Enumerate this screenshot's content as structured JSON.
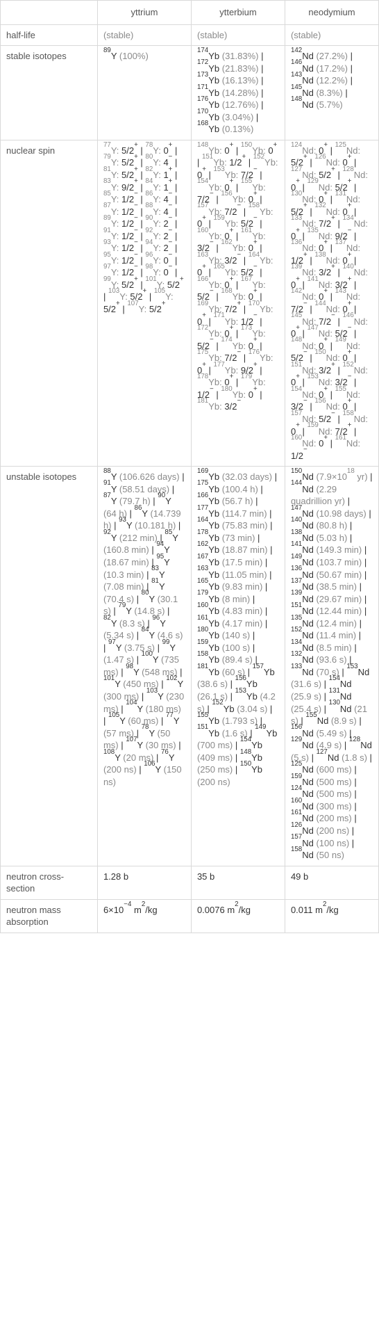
{
  "headers": [
    "",
    "yttrium",
    "ytterbium",
    "neodymium"
  ],
  "rows": [
    {
      "label": "half-life",
      "cells": [
        {
          "html": "(stable)",
          "class": "gray"
        },
        {
          "html": "(stable)",
          "class": "gray"
        },
        {
          "html": "(stable)",
          "class": "gray"
        }
      ]
    },
    {
      "label": "stable isotopes",
      "cells": [
        {
          "html": "<sup>89</sup>Y <span class=\"gray\">(100%)</span>"
        },
        {
          "html": "<sup>174</sup>Yb <span class=\"gray\">(31.83%)</span> | <sup>172</sup>Yb <span class=\"gray\">(21.83%)</span> | <sup>173</sup>Yb <span class=\"gray\">(16.13%)</span> | <sup>171</sup>Yb <span class=\"gray\">(14.28%)</span> | <sup>176</sup>Yb <span class=\"gray\">(12.76%)</span> | <sup>170</sup>Yb <span class=\"gray\">(3.04%)</span> | <sup>168</sup>Yb <span class=\"gray\">(0.13%)</span>"
        },
        {
          "html": "<sup>142</sup>Nd <span class=\"gray\">(27.2%)</span> | <sup>146</sup>Nd <span class=\"gray\">(17.2%)</span> | <sup>143</sup>Nd <span class=\"gray\">(12.2%)</span> | <sup>145</sup>Nd <span class=\"gray\">(8.3%)</span> | <sup>148</sup>Nd <span class=\"gray\">(5.7%)</span>"
        }
      ]
    },
    {
      "label": "nuclear spin",
      "cells": [
        {
          "html": "<span class=\"gray\"><sup>77</sup>Y:</span> 5/2<sup>+</sup> | <span class=\"gray\"><sup>78</sup>Y:</span> 0<sup>+</sup> | <span class=\"gray\"><sup>79</sup>Y:</span> 5/2<sup>+</sup> | <span class=\"gray\"><sup>80</sup>Y:</span> 4<sup>−</sup> | <span class=\"gray\"><sup>81</sup>Y:</span> 5/2<sup>+</sup> | <span class=\"gray\"><sup>82</sup>Y:</span> 1<sup>+</sup> | <span class=\"gray\"><sup>83</sup>Y:</span> 9/2<sup>+</sup> | <span class=\"gray\"><sup>84</sup>Y:</span> 1<sup>+</sup> | <span class=\"gray\"><sup>85</sup>Y:</span> 1/2<sup>−</sup> | <span class=\"gray\"><sup>86</sup>Y:</span> 4<sup>−</sup> | <span class=\"gray\"><sup>87</sup>Y:</span> 1/2<sup>−</sup> | <span class=\"gray\"><sup>88</sup>Y:</span> 4<sup>−</sup> | <span class=\"gray\"><sup>89</sup>Y:</span> 1/2<sup>−</sup> | <span class=\"gray\"><sup>90</sup>Y:</span> 2<sup>−</sup> | <span class=\"gray\"><sup>91</sup>Y:</span> 1/2<sup>−</sup> | <span class=\"gray\"><sup>92</sup>Y:</span> 2<sup>−</sup> | <span class=\"gray\"><sup>93</sup>Y:</span> 1/2<sup>−</sup> | <span class=\"gray\"><sup>94</sup>Y:</span> 2<sup>−</sup> | <span class=\"gray\"><sup>95</sup>Y:</span> 1/2<sup>−</sup> | <span class=\"gray\"><sup>96</sup>Y:</span> 0<sup>−</sup> | <span class=\"gray\"><sup>97</sup>Y:</span> 1/2<sup>−</sup> | <span class=\"gray\"><sup>98</sup>Y:</span> 0<sup>−</sup> | <span class=\"gray\"><sup>99</sup>Y:</span> 5/2<sup>+</sup> | <span class=\"gray\"><sup>101</sup>Y:</span> 5/2<sup>+</sup> | <span class=\"gray\"><sup>103</sup>Y:</span> 5/2<sup>+</sup> | <span class=\"gray\"><sup>105</sup>Y:</span> 5/2<sup>+</sup> | <span class=\"gray\"><sup>107</sup>Y:</span> 5/2<sup>+</sup>"
        },
        {
          "html": "<span class=\"gray\"><sup>148</sup>Yb:</span> 0<sup>+</sup> | <span class=\"gray\"><sup>150</sup>Yb:</span> 0<sup>+</sup> | <span class=\"gray\"><sup>151</sup>Yb:</span> 1/2<sup>+</sup> | <span class=\"gray\"><sup>152</sup>Yb:</span> 0<sup>+</sup> | <span class=\"gray\"><sup>153</sup>Yb:</span> 7/2<sup>−</sup> | <span class=\"gray\"><sup>154</sup>Yb:</span> 0<sup>+</sup> | <span class=\"gray\"><sup>155</sup>Yb:</span> 7/2<sup>−</sup> | <span class=\"gray\"><sup>156</sup>Yb:</span> 0<sup>+</sup> | <span class=\"gray\"><sup>157</sup>Yb:</span> 7/2<sup>−</sup> | <span class=\"gray\"><sup>158</sup>Yb:</span> 0<sup>+</sup> | <span class=\"gray\"><sup>159</sup>Yb:</span> 5/2<sup>−</sup> | <span class=\"gray\"><sup>160</sup>Yb:</span> 0<sup>+</sup> | <span class=\"gray\"><sup>161</sup>Yb:</span> 3/2<sup>−</sup> | <span class=\"gray\"><sup>162</sup>Yb:</span> 0<sup>+</sup> | <span class=\"gray\"><sup>163</sup>Yb:</span> 3/2<sup>−</sup> | <span class=\"gray\"><sup>164</sup>Yb:</span> 0<sup>+</sup> | <span class=\"gray\"><sup>165</sup>Yb:</span> 5/2<sup>−</sup> | <span class=\"gray\"><sup>166</sup>Yb:</span> 0<sup>+</sup> | <span class=\"gray\"><sup>167</sup>Yb:</span> 5/2<sup>−</sup> | <span class=\"gray\"><sup>168</sup>Yb:</span> 0<sup>+</sup> | <span class=\"gray\"><sup>169</sup>Yb:</span> 7/2<sup>+</sup> | <span class=\"gray\"><sup>170</sup>Yb:</span> 0<sup>+</sup> | <span class=\"gray\"><sup>171</sup>Yb:</span> 1/2<sup>−</sup> | <span class=\"gray\"><sup>172</sup>Yb:</span> 0<sup>+</sup> | <span class=\"gray\"><sup>173</sup>Yb:</span> 5/2<sup>−</sup> | <span class=\"gray\"><sup>174</sup>Yb:</span> 0<sup>+</sup> | <span class=\"gray\"><sup>175</sup>Yb:</span> 7/2<sup>−</sup> | <span class=\"gray\"><sup>176</sup>Yb:</span> 0<sup>+</sup> | <span class=\"gray\"><sup>177</sup>Yb:</span> 9/2<sup>+</sup> | <span class=\"gray\"><sup>178</sup>Yb:</span> 0<sup>+</sup> | <span class=\"gray\"><sup>179</sup>Yb:</span> 1/2<sup>−</sup> | <span class=\"gray\"><sup>180</sup>Yb:</span> 0<sup>+</sup> | <span class=\"gray\"><sup>181</sup>Yb:</span> 3/2<sup>−</sup>"
        },
        {
          "html": "<span class=\"gray\"><sup>124</sup>Nd:</span> 0<sup>+</sup> | <span class=\"gray\"><sup>125</sup>Nd:</span> 5/2<sup>+</sup> | <span class=\"gray\"><sup>126</sup>Nd:</span> 0<sup>+</sup> | <span class=\"gray\"><sup>127</sup>Nd:</span> 5/2<sup>+</sup> | <span class=\"gray\"><sup>128</sup>Nd:</span> 0<sup>+</sup> | <span class=\"gray\"><sup>129</sup>Nd:</span> 5/2<sup>+</sup> | <span class=\"gray\"><sup>130</sup>Nd:</span> 0<sup>+</sup> | <span class=\"gray\"><sup>131</sup>Nd:</span> 5/2<sup>+</sup> | <span class=\"gray\"><sup>132</sup>Nd:</span> 0<sup>+</sup> | <span class=\"gray\"><sup>133</sup>Nd:</span> 7/2<sup>+</sup> | <span class=\"gray\"><sup>134</sup>Nd:</span> 0<sup>+</sup> | <span class=\"gray\"><sup>135</sup>Nd:</span> 9/2<sup>−</sup> | <span class=\"gray\"><sup>136</sup>Nd:</span> 0<sup>+</sup> | <span class=\"gray\"><sup>137</sup>Nd:</span> 1/2<sup>+</sup> | <span class=\"gray\"><sup>138</sup>Nd:</span> 0<sup>+</sup> | <span class=\"gray\"><sup>139</sup>Nd:</span> 3/2<sup>+</sup> | <span class=\"gray\"><sup>140</sup>Nd:</span> 0<sup>+</sup> | <span class=\"gray\"><sup>141</sup>Nd:</span> 3/2<sup>+</sup> | <span class=\"gray\"><sup>142</sup>Nd:</span> 0<sup>+</sup> | <span class=\"gray\"><sup>143</sup>Nd:</span> 7/2<sup>−</sup> | <span class=\"gray\"><sup>144</sup>Nd:</span> 0<sup>+</sup> | <span class=\"gray\"><sup>145</sup>Nd:</span> 7/2<sup>−</sup> | <span class=\"gray\"><sup>146</sup>Nd:</span> 0<sup>+</sup> | <span class=\"gray\"><sup>147</sup>Nd:</span> 5/2<sup>−</sup> | <span class=\"gray\"><sup>148</sup>Nd:</span> 0<sup>+</sup> | <span class=\"gray\"><sup>149</sup>Nd:</span> 5/2<sup>−</sup> | <span class=\"gray\"><sup>150</sup>Nd:</span> 0<sup>+</sup> | <span class=\"gray\"><sup>151</sup>Nd:</span> 3/2<sup>+</sup> | <span class=\"gray\"><sup>152</sup>Nd:</span> 0<sup>+</sup> | <span class=\"gray\"><sup>153</sup>Nd:</span> 3/2<sup>−</sup> | <span class=\"gray\"><sup>154</sup>Nd:</span> 0<sup>+</sup> | <span class=\"gray\"><sup>155</sup>Nd:</span> 3/2<sup>−</sup> | <span class=\"gray\"><sup>156</sup>Nd:</span> 0<sup>+</sup> | <span class=\"gray\"><sup>157</sup>Nd:</span> 5/2<sup>−</sup> | <span class=\"gray\"><sup>158</sup>Nd:</span> 0<sup>+</sup> | <span class=\"gray\"><sup>159</sup>Nd:</span> 7/2<sup>+</sup> | <span class=\"gray\"><sup>160</sup>Nd:</span> 0<sup>+</sup> | <span class=\"gray\"><sup>161</sup>Nd:</span> 1/2<sup>−</sup>"
        }
      ]
    },
    {
      "label": "unstable isotopes",
      "cells": [
        {
          "html": "<sup>88</sup>Y <span class=\"gray\">(106.626 days)</span> | <sup>91</sup>Y <span class=\"gray\">(58.51 days)</span> | <sup>87</sup>Y <span class=\"gray\">(79.7 h)</span> | <sup>90</sup>Y <span class=\"gray\">(64 h)</span> | <sup>86</sup>Y <span class=\"gray\">(14.739 h)</span> | <sup>93</sup>Y <span class=\"gray\">(10.181 h)</span> | <sup>92</sup>Y <span class=\"gray\">(212 min)</span> | <sup>85</sup>Y <span class=\"gray\">(160.8 min)</span> | <sup>94</sup>Y <span class=\"gray\">(18.67 min)</span> | <sup>95</sup>Y <span class=\"gray\">(10.3 min)</span> | <sup>83</sup>Y <span class=\"gray\">(7.08 min)</span> | <sup>81</sup>Y <span class=\"gray\">(70.4 s)</span> | <sup>80</sup>Y <span class=\"gray\">(30.1 s)</span> | <sup>79</sup>Y <span class=\"gray\">(14.8 s)</span> | <sup>82</sup>Y <span class=\"gray\">(8.3 s)</span> | <sup>96</sup>Y <span class=\"gray\">(5.34 s)</span> | <sup>84</sup>Y <span class=\"gray\">(4.6 s)</span> | <sup>97</sup>Y <span class=\"gray\">(3.75 s)</span> | <sup>99</sup>Y <span class=\"gray\">(1.47 s)</span> | <sup>100</sup>Y <span class=\"gray\">(735 ms)</span> | <sup>98</sup>Y <span class=\"gray\">(548 ms)</span> | <sup>101</sup>Y <span class=\"gray\">(450 ms)</span> | <sup>102</sup>Y <span class=\"gray\">(300 ms)</span> | <sup>103</sup>Y <span class=\"gray\">(230 ms)</span> | <sup>104</sup>Y <span class=\"gray\">(180 ms)</span> | <sup>105</sup>Y <span class=\"gray\">(60 ms)</span> | <sup>77</sup>Y <span class=\"gray\">(57 ms)</span> | <sup>78</sup>Y <span class=\"gray\">(50 ms)</span> | <sup>107</sup>Y <span class=\"gray\">(30 ms)</span> | <sup>108</sup>Y <span class=\"gray\">(20 ms)</span> | <sup>76</sup>Y <span class=\"gray\">(200 ns)</span> | <sup>106</sup>Y <span class=\"gray\">(150 ns)</span>"
        },
        {
          "html": "<sup>169</sup>Yb <span class=\"gray\">(32.03 days)</span> | <sup>175</sup>Yb <span class=\"gray\">(100.4 h)</span> | <sup>166</sup>Yb <span class=\"gray\">(56.7 h)</span> | <sup>177</sup>Yb <span class=\"gray\">(114.7 min)</span> | <sup>164</sup>Yb <span class=\"gray\">(75.83 min)</span> | <sup>178</sup>Yb <span class=\"gray\">(73 min)</span> | <sup>162</sup>Yb <span class=\"gray\">(18.87 min)</span> | <sup>167</sup>Yb <span class=\"gray\">(17.5 min)</span> | <sup>163</sup>Yb <span class=\"gray\">(11.05 min)</span> | <sup>165</sup>Yb <span class=\"gray\">(9.83 min)</span> | <sup>179</sup>Yb <span class=\"gray\">(8 min)</span> | <sup>160</sup>Yb <span class=\"gray\">(4.83 min)</span> | <sup>161</sup>Yb <span class=\"gray\">(4.17 min)</span> | <sup>180</sup>Yb <span class=\"gray\">(140 s)</span> | <sup>159</sup>Yb <span class=\"gray\">(100 s)</span> | <sup>158</sup>Yb <span class=\"gray\">(89.4 s)</span> | <sup>181</sup>Yb <span class=\"gray\">(60 s)</span> | <sup>157</sup>Yb <span class=\"gray\">(38.6 s)</span> | <sup>156</sup>Yb <span class=\"gray\">(26.1 s)</span> | <sup>153</sup>Yb <span class=\"gray\">(4.2 s)</span> | <sup>152</sup>Yb <span class=\"gray\">(3.04 s)</span> | <sup>155</sup>Yb <span class=\"gray\">(1.793 s)</span> | <sup>151</sup>Yb <span class=\"gray\">(1.6 s)</span> | <sup>149</sup>Yb <span class=\"gray\">(700 ms)</span> | <sup>154</sup>Yb <span class=\"gray\">(409 ms)</span> | <sup>148</sup>Yb <span class=\"gray\">(250 ms)</span> | <sup>150</sup>Yb <span class=\"gray\">(200 ns)</span>"
        },
        {
          "html": "<sup>150</sup>Nd <span class=\"gray\">(7.9×10<sup>18</sup> yr)</span> | <sup>144</sup>Nd <span class=\"gray\">(2.29 quadrillion yr)</span> | <sup>147</sup>Nd <span class=\"gray\">(10.98 days)</span> | <sup>140</sup>Nd <span class=\"gray\">(80.8 h)</span> | <sup>138</sup>Nd <span class=\"gray\">(5.03 h)</span> | <sup>141</sup>Nd <span class=\"gray\">(149.3 min)</span> | <sup>149</sup>Nd <span class=\"gray\">(103.7 min)</span> | <sup>136</sup>Nd <span class=\"gray\">(50.67 min)</span> | <sup>137</sup>Nd <span class=\"gray\">(38.5 min)</span> | <sup>139</sup>Nd <span class=\"gray\">(29.67 min)</span> | <sup>151</sup>Nd <span class=\"gray\">(12.44 min)</span> | <sup>135</sup>Nd <span class=\"gray\">(12.4 min)</span> | <sup>152</sup>Nd <span class=\"gray\">(11.4 min)</span> | <sup>134</sup>Nd <span class=\"gray\">(8.5 min)</span> | <sup>132</sup>Nd <span class=\"gray\">(93.6 s)</span> | <sup>133</sup>Nd <span class=\"gray\">(70 s)</span> | <sup>153</sup>Nd <span class=\"gray\">(31.6 s)</span> | <sup>154</sup>Nd <span class=\"gray\">(25.9 s)</span> | <sup>131</sup>Nd <span class=\"gray\">(25.4 s)</span> | <sup>130</sup>Nd <span class=\"gray\">(21 s)</span> | <sup>155</sup>Nd <span class=\"gray\">(8.9 s)</span> | <sup>156</sup>Nd <span class=\"gray\">(5.49 s)</span> | <sup>129</sup>Nd <span class=\"gray\">(4.9 s)</span> | <sup>128</sup>Nd <span class=\"gray\">(5 s)</span> | <sup>127</sup>Nd <span class=\"gray\">(1.8 s)</span> | <sup>125</sup>Nd <span class=\"gray\">(600 ms)</span> | <sup>159</sup>Nd <span class=\"gray\">(500 ms)</span> | <sup>124</sup>Nd <span class=\"gray\">(500 ms)</span> | <sup>160</sup>Nd <span class=\"gray\">(300 ms)</span> | <sup>161</sup>Nd <span class=\"gray\">(200 ms)</span> | <sup>126</sup>Nd <span class=\"gray\">(200 ns)</span> | <sup>157</sup>Nd <span class=\"gray\">(100 ns)</span> | <sup>158</sup>Nd <span class=\"gray\">(50 ns)</span>"
        }
      ]
    },
    {
      "label": "neutron cross-section",
      "cells": [
        {
          "html": "1.28 b"
        },
        {
          "html": "35 b"
        },
        {
          "html": "49 b"
        }
      ]
    },
    {
      "label": "neutron mass absorption",
      "cells": [
        {
          "html": "6×10<sup>−4</sup> m<sup>2</sup>/kg"
        },
        {
          "html": "0.0076 m<sup>2</sup>/kg"
        },
        {
          "html": "0.011 m<sup>2</sup>/kg"
        }
      ]
    }
  ]
}
